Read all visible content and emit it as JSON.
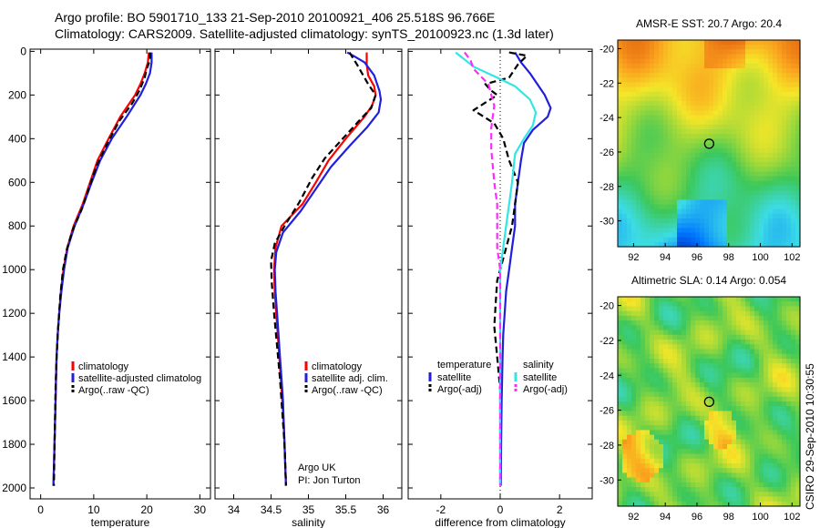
{
  "header": {
    "line1": "Argo profile: BO 5901710_133 21-Sep-2010 20100921_406 25.518S 96.766E",
    "line2": "Climatology: CARS2009. Satellite-adjusted climatology: synTS_20100923.nc (1.3d later)"
  },
  "footer_stamp": "CSIRO 29-Sep-2010 10:30:55",
  "colors": {
    "climatology": "#ff0000",
    "satellite": "#1f1fdc",
    "argo": "#000000",
    "sat_temp": "#1f1fdc",
    "sat_sal": "#33e6e6",
    "argo_sal": "#ff2bff"
  },
  "chart_data": [
    {
      "type": "line",
      "id": "temperature",
      "xlabel": "temperature",
      "xlim": [
        -2,
        32
      ],
      "ylim": [
        2050,
        -10
      ],
      "xticks": [
        0,
        10,
        20,
        30
      ],
      "yticks": [
        0,
        200,
        400,
        600,
        800,
        1000,
        1200,
        1400,
        1600,
        1800,
        2000
      ],
      "legend": [
        "climatology",
        "satellite-adjusted climatolog",
        "Argo(..raw -QC)"
      ],
      "series": [
        {
          "name": "climatology",
          "color": "#ff0000",
          "dash": false,
          "points": [
            [
              20.4,
              5
            ],
            [
              20.2,
              50
            ],
            [
              19.6,
              100
            ],
            [
              18.8,
              150
            ],
            [
              17.8,
              200
            ],
            [
              15.0,
              300
            ],
            [
              12.8,
              400
            ],
            [
              10.7,
              500
            ],
            [
              9.3,
              600
            ],
            [
              7.9,
              700
            ],
            [
              6.2,
              800
            ],
            [
              5.0,
              900
            ],
            [
              4.3,
              1000
            ],
            [
              3.8,
              1100
            ],
            [
              3.5,
              1200
            ],
            [
              3.2,
              1300
            ],
            [
              3.0,
              1400
            ],
            [
              2.9,
              1500
            ],
            [
              2.8,
              1600
            ],
            [
              2.7,
              1700
            ],
            [
              2.6,
              1800
            ],
            [
              2.5,
              1900
            ],
            [
              2.4,
              1990
            ]
          ]
        },
        {
          "name": "satellite-adjusted climatolog",
          "color": "#1f1fdc",
          "dash": false,
          "points": [
            [
              20.9,
              5
            ],
            [
              20.9,
              50
            ],
            [
              20.6,
              100
            ],
            [
              19.8,
              150
            ],
            [
              18.8,
              200
            ],
            [
              16.2,
              300
            ],
            [
              13.4,
              400
            ],
            [
              11.2,
              500
            ],
            [
              9.6,
              600
            ],
            [
              8.1,
              700
            ],
            [
              6.4,
              800
            ],
            [
              5.1,
              900
            ],
            [
              4.4,
              1000
            ],
            [
              3.9,
              1100
            ],
            [
              3.5,
              1200
            ],
            [
              3.2,
              1300
            ],
            [
              3.0,
              1400
            ],
            [
              2.9,
              1500
            ],
            [
              2.8,
              1600
            ],
            [
              2.7,
              1700
            ],
            [
              2.6,
              1800
            ],
            [
              2.5,
              1900
            ],
            [
              2.4,
              1990
            ]
          ]
        },
        {
          "name": "Argo(..raw -QC)",
          "color": "#000000",
          "dash": true,
          "points": [
            [
              20.6,
              5
            ],
            [
              20.6,
              40
            ],
            [
              20.0,
              80
            ],
            [
              19.6,
              120
            ],
            [
              18.6,
              180
            ],
            [
              17.2,
              240
            ],
            [
              14.8,
              320
            ],
            [
              12.6,
              420
            ],
            [
              10.6,
              520
            ],
            [
              9.2,
              620
            ],
            [
              7.8,
              720
            ],
            [
              6.0,
              820
            ],
            [
              4.9,
              910
            ],
            [
              4.2,
              1000
            ],
            [
              3.7,
              1120
            ],
            [
              3.3,
              1260
            ],
            [
              3.0,
              1400
            ],
            [
              2.8,
              1540
            ],
            [
              2.7,
              1680
            ],
            [
              2.6,
              1820
            ],
            [
              2.5,
              1990
            ]
          ]
        }
      ]
    },
    {
      "type": "line",
      "id": "salinity",
      "xlabel": "salinity",
      "xlim": [
        33.75,
        36.25
      ],
      "ylim": [
        2050,
        -10
      ],
      "xticks": [
        34,
        34.5,
        35,
        35.5,
        36
      ],
      "yticks": [
        0,
        200,
        400,
        600,
        800,
        1000,
        1200,
        1400,
        1600,
        1800,
        2000
      ],
      "legend": [
        "climatology",
        "satellite adj. clim.",
        "Argo(..raw -QC)"
      ],
      "annotation": [
        "Argo UK",
        "PI: Jon Turton"
      ],
      "series": [
        {
          "name": "climatology",
          "color": "#ff0000",
          "dash": false,
          "points": [
            [
              35.78,
              5
            ],
            [
              35.78,
              60
            ],
            [
              35.8,
              110
            ],
            [
              35.88,
              160
            ],
            [
              35.9,
              200
            ],
            [
              35.85,
              250
            ],
            [
              35.75,
              300
            ],
            [
              35.5,
              400
            ],
            [
              35.27,
              500
            ],
            [
              35.1,
              600
            ],
            [
              34.92,
              700
            ],
            [
              34.64,
              800
            ],
            [
              34.56,
              900
            ],
            [
              34.54,
              1000
            ],
            [
              34.55,
              1100
            ],
            [
              34.57,
              1200
            ],
            [
              34.59,
              1300
            ],
            [
              34.61,
              1400
            ],
            [
              34.63,
              1500
            ],
            [
              34.65,
              1600
            ],
            [
              34.67,
              1700
            ],
            [
              34.68,
              1800
            ],
            [
              34.69,
              1900
            ],
            [
              34.7,
              1990
            ]
          ]
        },
        {
          "name": "satellite adj. clim.",
          "color": "#1f1fdc",
          "dash": false,
          "points": [
            [
              35.52,
              5
            ],
            [
              35.6,
              20
            ],
            [
              35.75,
              50
            ],
            [
              35.88,
              110
            ],
            [
              35.95,
              180
            ],
            [
              35.97,
              220
            ],
            [
              35.94,
              280
            ],
            [
              35.78,
              350
            ],
            [
              35.56,
              430
            ],
            [
              35.3,
              530
            ],
            [
              35.1,
              630
            ],
            [
              34.9,
              730
            ],
            [
              34.66,
              830
            ],
            [
              34.57,
              920
            ],
            [
              34.55,
              1000
            ],
            [
              34.56,
              1100
            ],
            [
              34.58,
              1200
            ],
            [
              34.6,
              1300
            ],
            [
              34.62,
              1400
            ],
            [
              34.64,
              1500
            ],
            [
              34.66,
              1600
            ],
            [
              34.67,
              1700
            ],
            [
              34.68,
              1800
            ],
            [
              34.69,
              1900
            ],
            [
              34.7,
              1990
            ]
          ]
        },
        {
          "name": "Argo(..raw -QC)",
          "color": "#000000",
          "dash": true,
          "points": [
            [
              35.55,
              5
            ],
            [
              35.65,
              60
            ],
            [
              35.8,
              150
            ],
            [
              35.9,
              200
            ],
            [
              35.84,
              260
            ],
            [
              35.7,
              310
            ],
            [
              35.46,
              400
            ],
            [
              35.22,
              490
            ],
            [
              35.05,
              580
            ],
            [
              34.88,
              690
            ],
            [
              34.68,
              800
            ],
            [
              34.55,
              880
            ],
            [
              34.5,
              960
            ],
            [
              34.51,
              1060
            ],
            [
              34.54,
              1200
            ],
            [
              34.58,
              1350
            ],
            [
              34.62,
              1500
            ],
            [
              34.65,
              1650
            ],
            [
              34.68,
              1800
            ],
            [
              34.7,
              1990
            ]
          ]
        }
      ]
    },
    {
      "type": "line",
      "id": "difference",
      "xlabel": "difference from climatology",
      "xlim": [
        -3.1,
        3.1
      ],
      "ylim": [
        2050,
        -10
      ],
      "xticks": [
        -2,
        0,
        2
      ],
      "yticks": [
        0,
        200,
        400,
        600,
        800,
        1000,
        1200,
        1400,
        1600,
        1800,
        2000
      ],
      "legend_temperature": {
        "title": "temperature",
        "items": [
          "satellite",
          "Argo(-adj)"
        ]
      },
      "legend_salinity": {
        "title": "salinity",
        "items": [
          "satellite",
          "Argo(-adj)"
        ]
      },
      "series": [
        {
          "name": "temperature satellite",
          "color": "#1f1fdc",
          "dash": false,
          "points": [
            [
              0.5,
              5
            ],
            [
              0.7,
              50
            ],
            [
              1.0,
              100
            ],
            [
              1.5,
              200
            ],
            [
              1.7,
              260
            ],
            [
              1.6,
              300
            ],
            [
              1.1,
              360
            ],
            [
              0.8,
              420
            ],
            [
              0.7,
              500
            ],
            [
              0.6,
              600
            ],
            [
              0.5,
              700
            ],
            [
              0.5,
              800
            ],
            [
              0.4,
              900
            ],
            [
              0.3,
              1000
            ],
            [
              0.2,
              1100
            ],
            [
              0.15,
              1200
            ],
            [
              0.1,
              1300
            ],
            [
              0.08,
              1400
            ],
            [
              0.05,
              1600
            ],
            [
              0.03,
              1800
            ],
            [
              0.02,
              1990
            ]
          ]
        },
        {
          "name": "temperature Argo(-adj)",
          "color": "#000000",
          "dash": true,
          "points": [
            [
              0.3,
              5
            ],
            [
              0.9,
              20
            ],
            [
              0.6,
              60
            ],
            [
              0.3,
              120
            ],
            [
              -0.5,
              150
            ],
            [
              -0.3,
              180
            ],
            [
              -0.1,
              200
            ],
            [
              -0.9,
              270
            ],
            [
              -0.2,
              330
            ],
            [
              0.1,
              400
            ],
            [
              0.3,
              500
            ],
            [
              0.6,
              600
            ],
            [
              0.5,
              700
            ],
            [
              0.4,
              800
            ],
            [
              0.2,
              900
            ],
            [
              0.0,
              1000
            ],
            [
              -0.1,
              1050
            ],
            [
              -0.15,
              1150
            ],
            [
              -0.2,
              1260
            ],
            [
              -0.1,
              1400
            ],
            [
              0.0,
              1550
            ],
            [
              0.0,
              1750
            ],
            [
              0.0,
              1990
            ]
          ]
        },
        {
          "name": "salinity satellite",
          "color": "#33e6e6",
          "dash": false,
          "points": [
            [
              -1.5,
              5
            ],
            [
              -0.9,
              70
            ],
            [
              -0.1,
              120
            ],
            [
              0.5,
              160
            ],
            [
              1.0,
              220
            ],
            [
              1.2,
              280
            ],
            [
              1.1,
              340
            ],
            [
              0.8,
              400
            ],
            [
              0.5,
              470
            ],
            [
              0.4,
              600
            ],
            [
              0.3,
              700
            ],
            [
              0.2,
              800
            ],
            [
              0.1,
              900
            ],
            [
              0.0,
              1000
            ],
            [
              0.0,
              1200
            ],
            [
              0.0,
              1500
            ],
            [
              0.0,
              1800
            ],
            [
              0.0,
              1990
            ]
          ]
        },
        {
          "name": "salinity Argo(-adj)",
          "color": "#ff2bff",
          "dash": true,
          "points": [
            [
              -1.2,
              5
            ],
            [
              -1.0,
              40
            ],
            [
              -0.9,
              80
            ],
            [
              -0.4,
              150
            ],
            [
              -0.2,
              250
            ],
            [
              -0.3,
              350
            ],
            [
              -0.3,
              450
            ],
            [
              -0.2,
              600
            ],
            [
              -0.1,
              700
            ],
            [
              -0.1,
              800
            ],
            [
              -0.1,
              900
            ],
            [
              0.0,
              1000
            ],
            [
              0.0,
              1300
            ],
            [
              0.0,
              1600
            ],
            [
              0.0,
              1990
            ]
          ]
        }
      ]
    },
    {
      "type": "heatmap",
      "id": "sst-map",
      "title": "AMSR-E SST: 20.7 Argo: 20.4",
      "xlim": [
        91,
        102.5
      ],
      "ylim": [
        -31.5,
        -19.5
      ],
      "xticks": [
        92,
        94,
        96,
        98,
        100,
        102
      ],
      "yticks": [
        -20,
        -22,
        -24,
        -26,
        -28,
        -30
      ],
      "marker": [
        96.77,
        -25.52
      ]
    },
    {
      "type": "heatmap",
      "id": "sla-map",
      "title": "Altimetric SLA: 0.14 Argo: 0.054",
      "xlim": [
        91,
        102.5
      ],
      "ylim": [
        -31.5,
        -19.5
      ],
      "xticks": [
        92,
        94,
        96,
        98,
        100,
        102
      ],
      "yticks": [
        -20,
        -22,
        -24,
        -26,
        -28,
        -30
      ],
      "marker": [
        96.77,
        -25.52
      ]
    }
  ]
}
